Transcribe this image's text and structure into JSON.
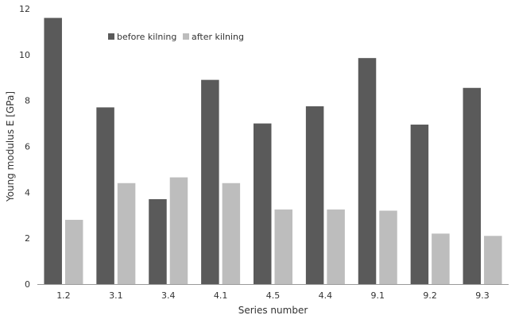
{
  "chart_data": {
    "type": "bar",
    "categories": [
      "1.2",
      "3.1",
      "3.4",
      "4.1",
      "4.5",
      "4.4",
      "9.1",
      "9.2",
      "9.3"
    ],
    "series": [
      {
        "name": "before kilning",
        "values": [
          11.6,
          7.7,
          3.7,
          8.9,
          7.0,
          7.75,
          9.85,
          6.95,
          8.55
        ]
      },
      {
        "name": "after kilning",
        "values": [
          2.8,
          4.4,
          4.65,
          4.4,
          3.25,
          3.25,
          3.2,
          2.2,
          2.1
        ]
      }
    ],
    "xlabel": "Series number",
    "ylabel": "Young modulus E [GPa]",
    "ylim": [
      0,
      12
    ],
    "yticks": [
      0,
      2,
      4,
      6,
      8,
      10,
      12
    ],
    "grid": false,
    "legend": "top-left",
    "colors": {
      "before kilning": "#5a5a5a",
      "after kilning": "#bdbdbd"
    }
  }
}
